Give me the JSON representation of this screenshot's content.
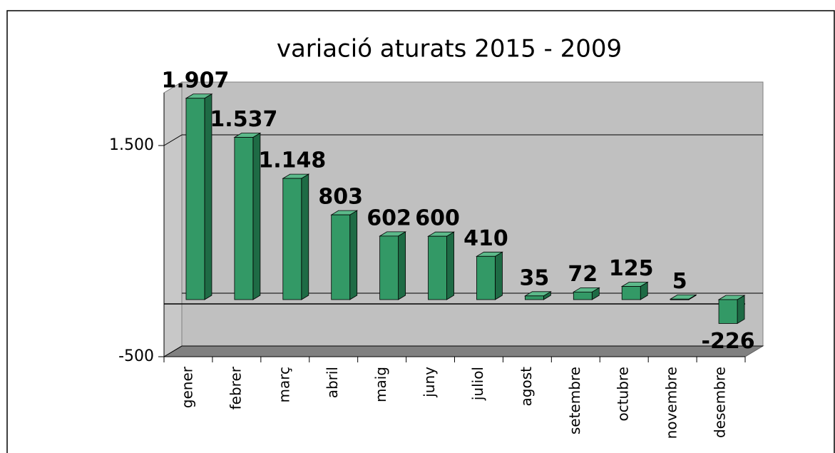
{
  "chart_data": {
    "type": "bar3d",
    "title": "variació aturats 2015 - 2009",
    "categories": [
      "gener",
      "febrer",
      "març",
      "abril",
      "maig",
      "juny",
      "juliol",
      "agost",
      "setembre",
      "octubre",
      "novembre",
      "desembre"
    ],
    "values": [
      1907,
      1537,
      1148,
      803,
      602,
      600,
      410,
      35,
      72,
      125,
      5,
      -226
    ],
    "value_labels": [
      "1.907",
      "1.537",
      "1.148",
      "803",
      "602",
      "600",
      "410",
      "35",
      "72",
      "125",
      "5",
      "-226"
    ],
    "color": "#339966",
    "ylim": [
      -500,
      2000
    ],
    "yticks": [
      -500,
      {
        "value": 1500,
        "label": "1.500"
      }
    ],
    "grid": true
  }
}
